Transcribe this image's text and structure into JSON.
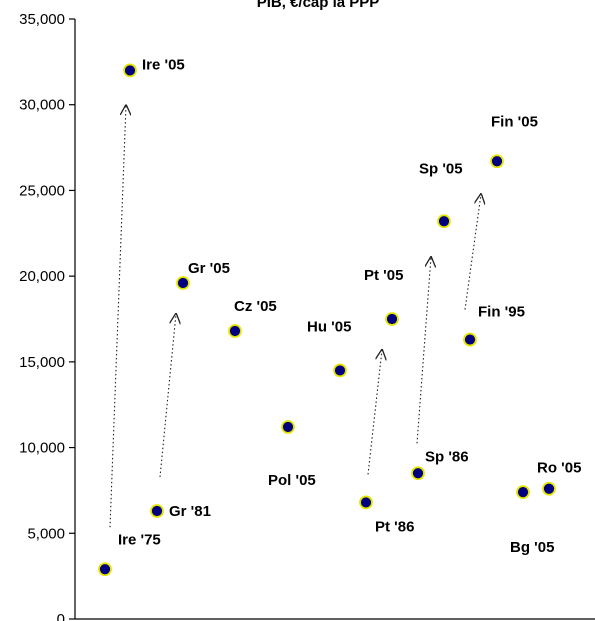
{
  "chart_data": {
    "type": "scatter",
    "title": "PIB, €/cap la PPP",
    "xlabel": "",
    "ylabel": "",
    "ylim": [
      0,
      35000
    ],
    "yticks": [
      "0",
      "5,000",
      "10,000",
      "15,000",
      "20,000",
      "25,000",
      "30,000",
      "35,000"
    ],
    "grid": false,
    "legend": "none",
    "points": [
      {
        "label": "Ire '75",
        "y": 2900
      },
      {
        "label": "Ire '05",
        "y": 32000
      },
      {
        "label": "Gr '81",
        "y": 6300
      },
      {
        "label": "Gr '05",
        "y": 19600
      },
      {
        "label": "Cz '05",
        "y": 16800
      },
      {
        "label": "Pol '05",
        "y": 11200
      },
      {
        "label": "Hu '05",
        "y": 14500
      },
      {
        "label": "Pt '86",
        "y": 6800
      },
      {
        "label": "Pt '05",
        "y": 17500
      },
      {
        "label": "Sp '86",
        "y": 8500
      },
      {
        "label": "Sp '05",
        "y": 23200
      },
      {
        "label": "Fin '95",
        "y": 16300
      },
      {
        "label": "Fin '05",
        "y": 26700
      },
      {
        "label": "Bg '05",
        "y": 7400
      },
      {
        "label": "Ro '05",
        "y": 7600
      }
    ],
    "arrows": [
      {
        "from": "Ire '75",
        "to": "Ire '05"
      },
      {
        "from": "Gr '81",
        "to": "Gr '05"
      },
      {
        "from": "Pt '86",
        "to": "Pt '05"
      },
      {
        "from": "Sp '86",
        "to": "Sp '05"
      },
      {
        "from": "Fin '95",
        "to": "Fin '05"
      }
    ],
    "colors": {
      "marker_fill": "#00007f",
      "marker_stroke": "#e5e500",
      "arrow": "#222222",
      "axis": "#000000"
    }
  }
}
